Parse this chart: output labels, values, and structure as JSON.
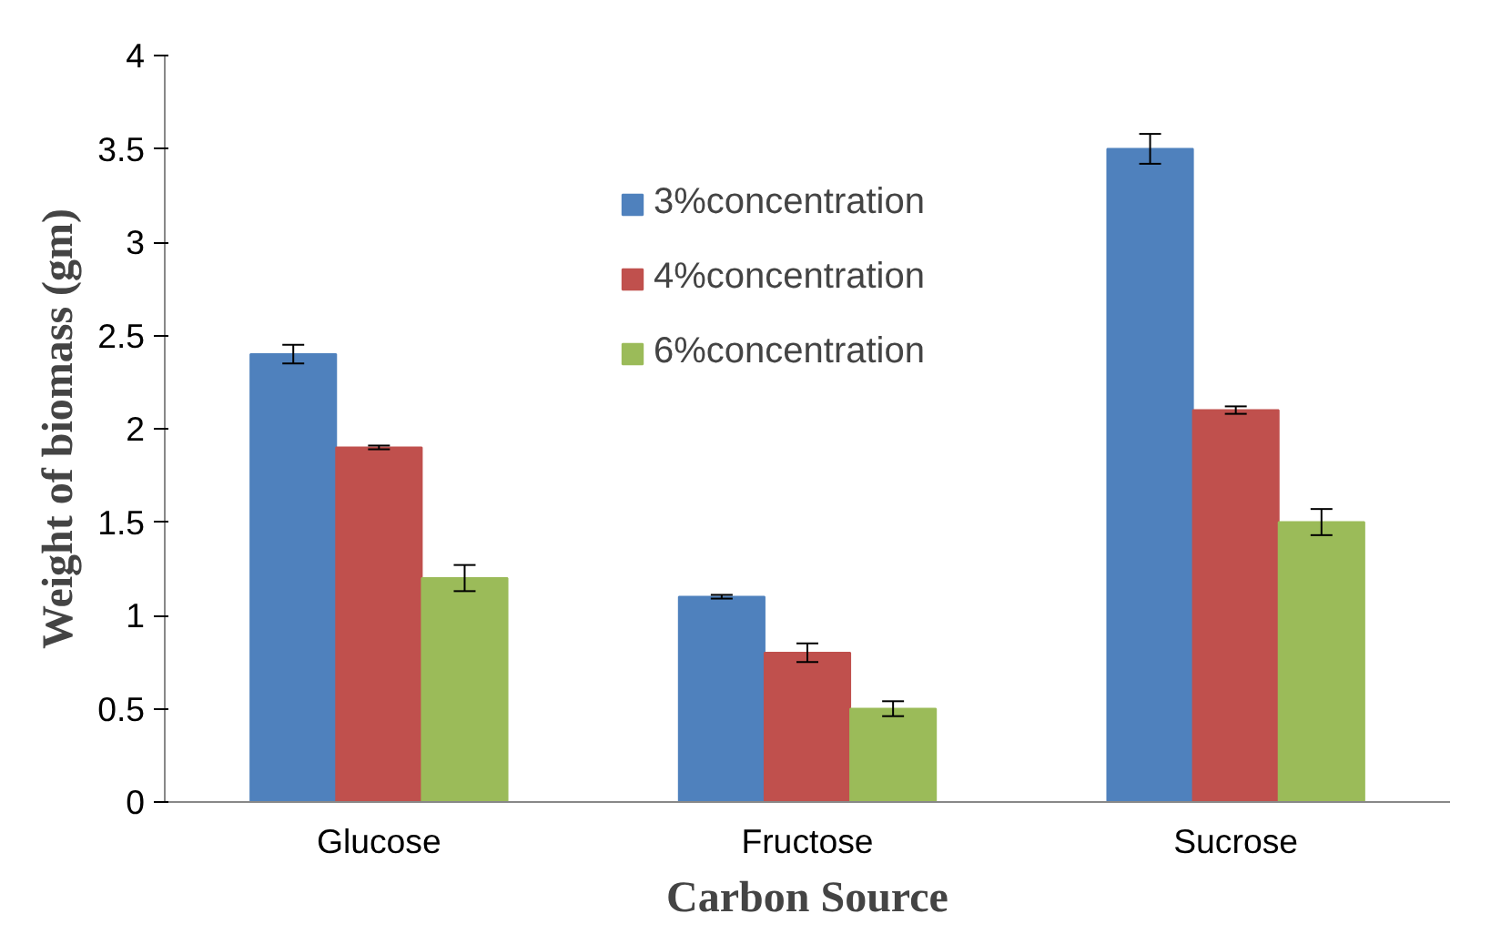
{
  "chart_data": {
    "type": "bar",
    "xlabel": "Carbon Source",
    "ylabel": "Weight of biomass (gm)",
    "categories": [
      "Glucose",
      "Fructose",
      "Sucrose"
    ],
    "series": [
      {
        "name": "3%concentration",
        "color": "#4f81bd",
        "values": [
          2.4,
          1.1,
          3.5
        ],
        "errors": [
          0.05,
          0.01,
          0.08
        ]
      },
      {
        "name": "4%concentration",
        "color": "#c0504d",
        "values": [
          1.9,
          0.8,
          2.1
        ],
        "errors": [
          0.01,
          0.05,
          0.02
        ]
      },
      {
        "name": "6%concentration",
        "color": "#9bbb59",
        "values": [
          1.2,
          0.5,
          1.5
        ],
        "errors": [
          0.07,
          0.04,
          0.07
        ]
      }
    ],
    "ylim": [
      0,
      4
    ],
    "yticks": [
      0,
      0.5,
      1,
      1.5,
      2,
      2.5,
      3,
      3.5,
      4
    ],
    "grid": false,
    "legend": "top"
  }
}
